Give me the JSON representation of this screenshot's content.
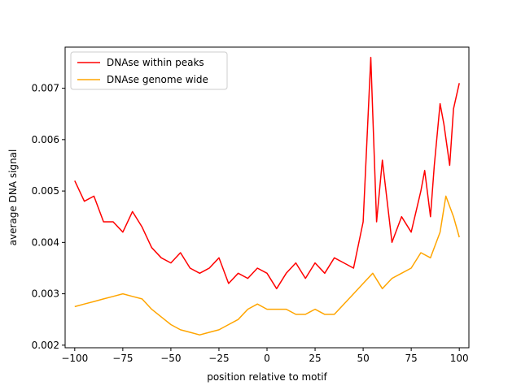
{
  "chart_data": {
    "type": "line",
    "xlabel": "position relative to motif",
    "ylabel": "average DNA signal",
    "xlim": [
      -105,
      105
    ],
    "ylim": [
      0.00195,
      0.0078
    ],
    "xticks": [
      -100,
      -75,
      -50,
      -25,
      0,
      25,
      50,
      75,
      100
    ],
    "xtick_labels": [
      "−100",
      "−75",
      "−50",
      "−25",
      "0",
      "25",
      "50",
      "75",
      "100"
    ],
    "yticks": [
      0.002,
      0.003,
      0.004,
      0.005,
      0.006,
      0.007
    ],
    "ytick_labels": [
      "0.002",
      "0.003",
      "0.004",
      "0.005",
      "0.006",
      "0.007"
    ],
    "grid": false,
    "legend_position": "top-left",
    "series": [
      {
        "name": "DNAse within peaks",
        "color": "#ff0000",
        "x": [
          -100,
          -95,
          -90,
          -85,
          -80,
          -75,
          -70,
          -65,
          -60,
          -55,
          -50,
          -45,
          -40,
          -35,
          -30,
          -25,
          -20,
          -15,
          -10,
          -5,
          0,
          5,
          10,
          15,
          20,
          25,
          30,
          35,
          40,
          45,
          50,
          52,
          54,
          55,
          57,
          60,
          65,
          70,
          75,
          80,
          82,
          85,
          87,
          90,
          92,
          95,
          97,
          100
        ],
        "y": [
          0.0052,
          0.0048,
          0.0049,
          0.0044,
          0.0044,
          0.0042,
          0.0046,
          0.0043,
          0.0039,
          0.0037,
          0.0036,
          0.0038,
          0.0035,
          0.0034,
          0.0035,
          0.0037,
          0.0032,
          0.0034,
          0.0033,
          0.0035,
          0.0034,
          0.0031,
          0.0034,
          0.0036,
          0.0033,
          0.0036,
          0.0034,
          0.0037,
          0.0036,
          0.0035,
          0.0044,
          0.006,
          0.0076,
          0.0065,
          0.0044,
          0.0056,
          0.004,
          0.0045,
          0.0042,
          0.005,
          0.0054,
          0.0045,
          0.0055,
          0.0067,
          0.0063,
          0.0055,
          0.0066,
          0.0071
        ]
      },
      {
        "name": "DNAse genome wide",
        "color": "#ffa500",
        "x": [
          -100,
          -95,
          -90,
          -85,
          -80,
          -75,
          -70,
          -65,
          -60,
          -55,
          -50,
          -45,
          -40,
          -35,
          -30,
          -25,
          -20,
          -15,
          -10,
          -5,
          0,
          5,
          10,
          15,
          20,
          25,
          30,
          35,
          40,
          45,
          50,
          55,
          60,
          65,
          70,
          75,
          80,
          85,
          90,
          93,
          97,
          100
        ],
        "y": [
          0.00275,
          0.0028,
          0.00285,
          0.0029,
          0.00295,
          0.003,
          0.00295,
          0.0029,
          0.0027,
          0.00255,
          0.0024,
          0.0023,
          0.00225,
          0.0022,
          0.00225,
          0.0023,
          0.0024,
          0.0025,
          0.0027,
          0.0028,
          0.0027,
          0.0027,
          0.0027,
          0.0026,
          0.0026,
          0.0027,
          0.0026,
          0.0026,
          0.0028,
          0.003,
          0.0032,
          0.0034,
          0.0031,
          0.0033,
          0.0034,
          0.0035,
          0.0038,
          0.0037,
          0.0042,
          0.0049,
          0.0045,
          0.0041
        ]
      }
    ]
  }
}
